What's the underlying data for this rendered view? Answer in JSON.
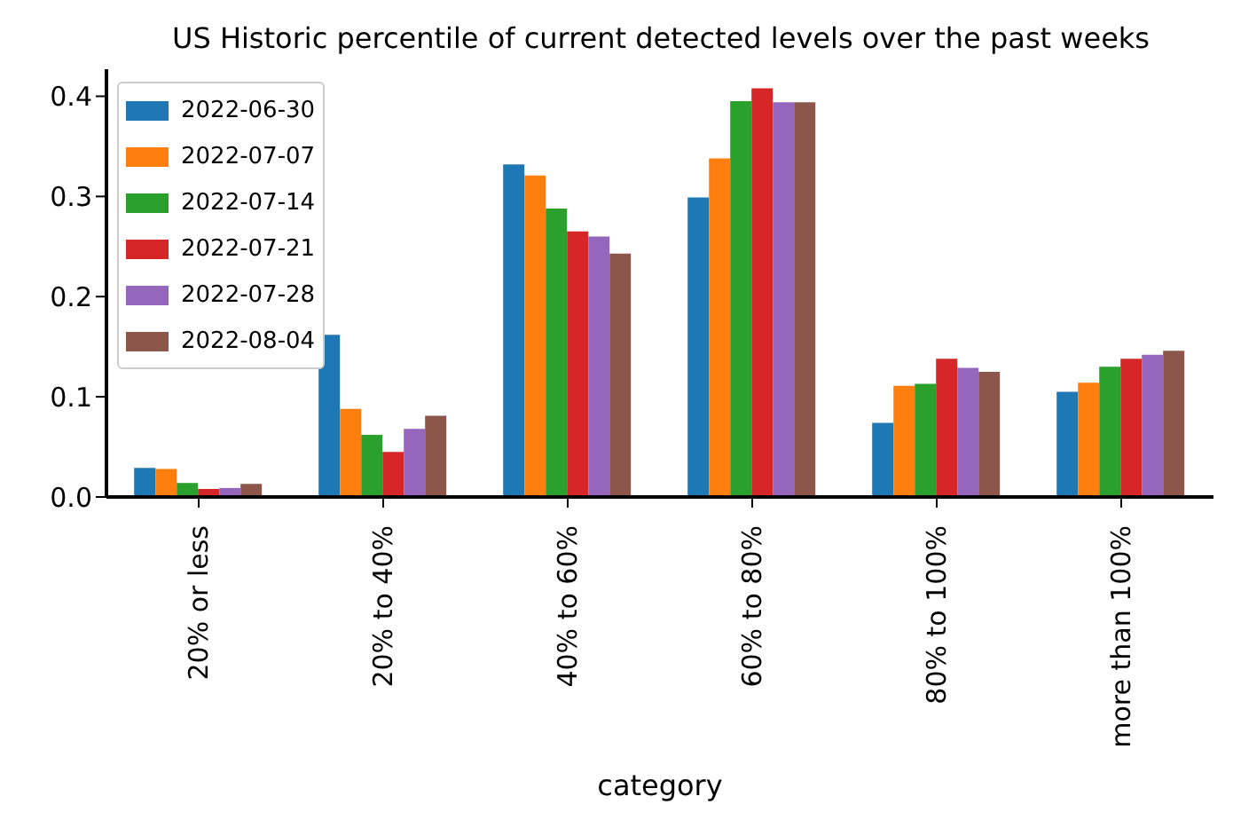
{
  "chart_data": {
    "type": "bar",
    "title": "US Historic percentile of current detected levels over the past weeks",
    "xlabel": "category",
    "categories": [
      "20% or less",
      "20% to 40%",
      "40% to 60%",
      "60% to 80%",
      "80% to 100%",
      "more than 100%"
    ],
    "series": [
      {
        "name": "2022-06-30",
        "color": "#1f77b4",
        "values": [
          0.029,
          0.162,
          0.332,
          0.299,
          0.074,
          0.105
        ]
      },
      {
        "name": "2022-07-07",
        "color": "#ff7f0e",
        "values": [
          0.028,
          0.088,
          0.321,
          0.338,
          0.111,
          0.114
        ]
      },
      {
        "name": "2022-07-14",
        "color": "#2ca02c",
        "values": [
          0.014,
          0.062,
          0.288,
          0.395,
          0.113,
          0.13
        ]
      },
      {
        "name": "2022-07-21",
        "color": "#d62728",
        "values": [
          0.008,
          0.045,
          0.265,
          0.408,
          0.138,
          0.138
        ]
      },
      {
        "name": "2022-07-28",
        "color": "#9467bd",
        "values": [
          0.009,
          0.068,
          0.26,
          0.394,
          0.129,
          0.142
        ]
      },
      {
        "name": "2022-08-04",
        "color": "#8c564b",
        "values": [
          0.013,
          0.081,
          0.243,
          0.394,
          0.125,
          0.146
        ]
      }
    ],
    "ylim": [
      0,
      0.427
    ],
    "yticks": [
      {
        "value": 0,
        "label": "0.0"
      },
      {
        "value": 0.1,
        "label": "0.1"
      },
      {
        "value": 0.2,
        "label": "0.2"
      },
      {
        "value": 0.3,
        "label": "0.3"
      },
      {
        "value": 0.4,
        "label": "0.4"
      }
    ],
    "grid": false,
    "legend": "top left"
  }
}
